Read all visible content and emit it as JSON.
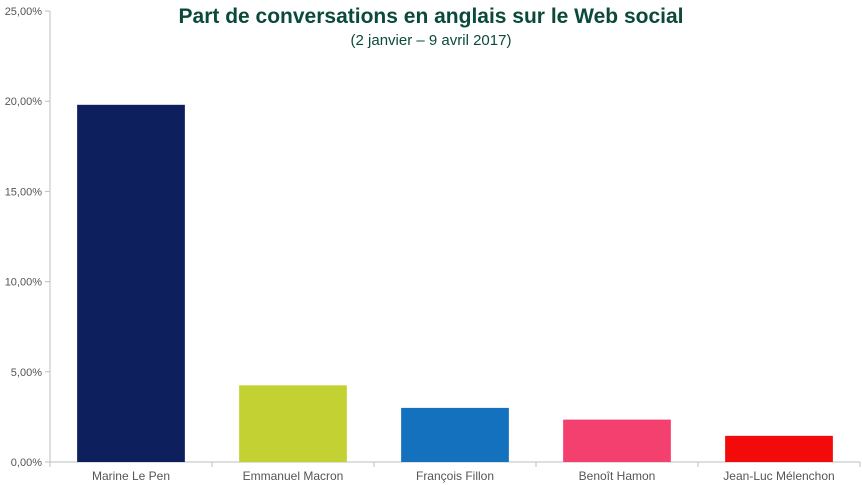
{
  "chart_data": {
    "type": "bar",
    "title": "Part de conversations en anglais sur le Web social",
    "subtitle": "(2 janvier – 9 avril 2017)",
    "xlabel": "",
    "ylabel": "",
    "ylim": [
      0,
      25
    ],
    "yticks": [
      0,
      5,
      10,
      15,
      20,
      25
    ],
    "ytick_labels": [
      "0,00%",
      "5,00%",
      "10,00%",
      "15,00%",
      "20,00%",
      "25,00%"
    ],
    "categories": [
      "Marine Le Pen",
      "Emmanuel Macron",
      "François Fillon",
      "Benoît Hamon",
      "Jean-Luc Mélenchon"
    ],
    "values": [
      19.8,
      4.25,
      3.0,
      2.35,
      1.45
    ],
    "colors": [
      "#0d1f5c",
      "#c3d232",
      "#1471be",
      "#f4406e",
      "#f30a0a"
    ],
    "grid": false,
    "legend": "none"
  }
}
